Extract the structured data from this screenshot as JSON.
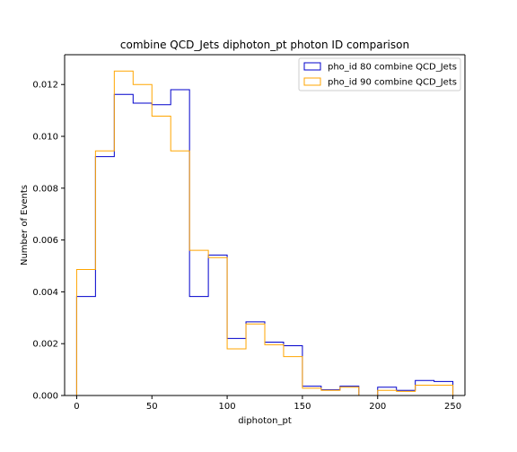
{
  "chart_data": {
    "type": "histogram",
    "title": "combine QCD_Jets diphoton_pt photon ID comparison",
    "xlabel": "diphoton_pt",
    "ylabel": "Number of Events",
    "xlim": [
      -8,
      258
    ],
    "ylim": [
      0,
      0.01315
    ],
    "xticks": [
      0,
      50,
      100,
      150,
      200,
      250
    ],
    "yticks": [
      0.0,
      0.002,
      0.004,
      0.006,
      0.008,
      0.01,
      0.012
    ],
    "xtick_labels": [
      "0",
      "50",
      "100",
      "150",
      "200",
      "250"
    ],
    "ytick_labels": [
      "0.000",
      "0.002",
      "0.004",
      "0.006",
      "0.008",
      "0.010",
      "0.012"
    ],
    "bin_edges": [
      0,
      12.5,
      25,
      37.5,
      50,
      62.5,
      75,
      87.5,
      100,
      112.5,
      125,
      137.5,
      150,
      162.5,
      175,
      187.5,
      200,
      212.5,
      225,
      237.5,
      250
    ],
    "legend_position": "top-right",
    "series": [
      {
        "name": "pho_id 80 combine QCD_Jets",
        "color": "#0000cc",
        "values": [
          0.00382,
          0.00922,
          0.01162,
          0.01128,
          0.01122,
          0.0118,
          0.00382,
          0.00542,
          0.0022,
          0.00284,
          0.00206,
          0.00192,
          0.00036,
          0.00022,
          0.00036,
          0.0,
          0.00032,
          0.0002,
          0.00058,
          0.00054
        ]
      },
      {
        "name": "pho_id 90 combine QCD_Jets",
        "color": "#ffa500",
        "values": [
          0.00486,
          0.00944,
          0.01252,
          0.012,
          0.01078,
          0.00944,
          0.0056,
          0.00532,
          0.0018,
          0.00276,
          0.00196,
          0.0015,
          0.00028,
          0.0002,
          0.00032,
          0.0,
          0.0002,
          0.00016,
          0.0004,
          0.0004
        ]
      }
    ]
  }
}
